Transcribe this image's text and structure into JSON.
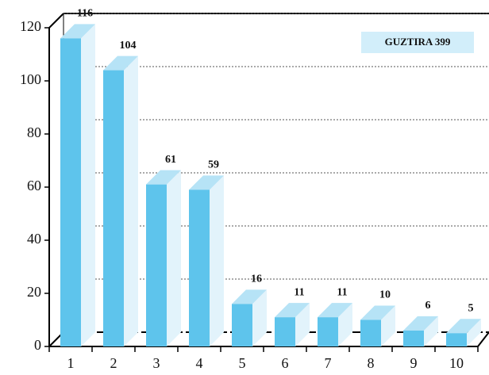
{
  "chart_data": {
    "type": "bar",
    "categories": [
      "1",
      "2",
      "3",
      "4",
      "5",
      "6",
      "7",
      "8",
      "9",
      "10"
    ],
    "values": [
      116,
      104,
      61,
      59,
      16,
      11,
      11,
      10,
      6,
      5
    ],
    "color": "#5ec4ec",
    "ylim": [
      0,
      120
    ],
    "yticks": [
      0,
      20,
      40,
      60,
      80,
      100,
      120
    ],
    "grid": true,
    "annotation": "GUZTIRA 399"
  }
}
